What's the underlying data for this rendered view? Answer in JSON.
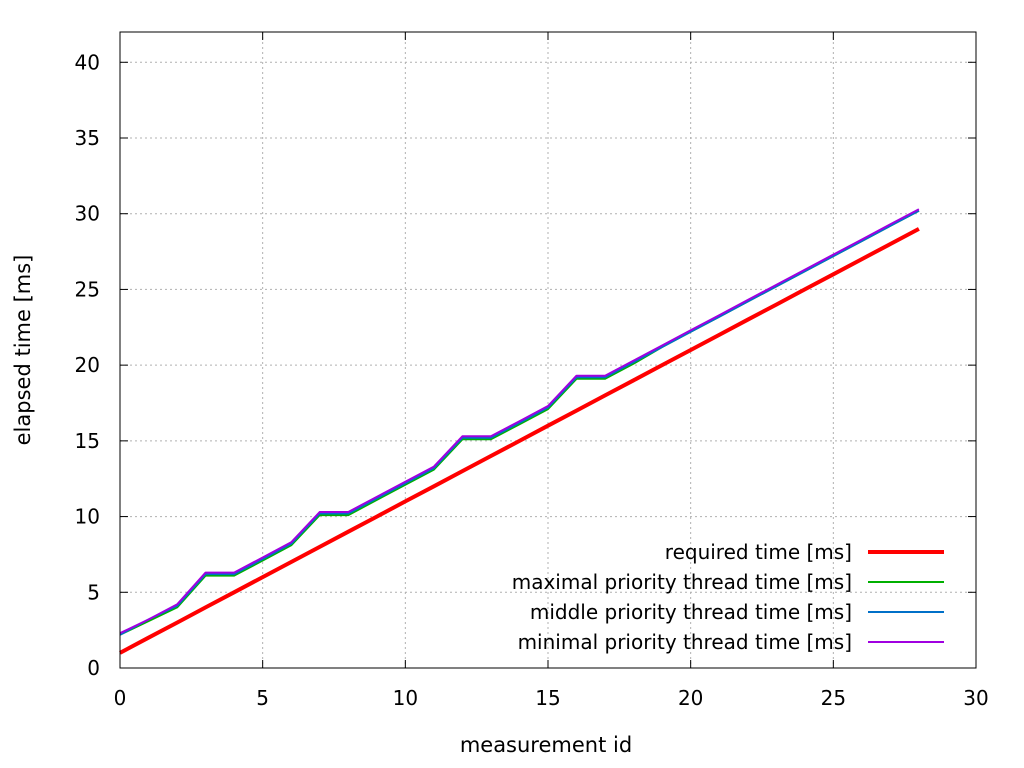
{
  "chart_data": {
    "type": "line",
    "title": "",
    "xlabel": "measurement id",
    "ylabel": "elapsed time [ms]",
    "xlim": [
      0,
      30
    ],
    "ylim": [
      0,
      42
    ],
    "x_ticks": [
      0,
      5,
      10,
      15,
      20,
      25,
      30
    ],
    "y_ticks": [
      0,
      5,
      10,
      15,
      20,
      25,
      30,
      35,
      40
    ],
    "grid": true,
    "legend_position": "bottom-right",
    "x": [
      0,
      1,
      2,
      3,
      4,
      5,
      6,
      7,
      8,
      9,
      10,
      11,
      12,
      13,
      14,
      15,
      16,
      17,
      18,
      19,
      20,
      21,
      22,
      23,
      24,
      25,
      26,
      27,
      28
    ],
    "series": [
      {
        "name": "required time [ms]",
        "color": "#ff0000",
        "values": [
          1,
          2,
          3,
          4,
          5,
          6,
          7,
          8,
          9,
          10,
          11,
          12,
          13,
          14,
          15,
          16,
          17,
          18,
          19,
          20,
          21,
          22,
          23,
          24,
          25,
          26,
          27,
          28,
          29
        ]
      },
      {
        "name": "maximal priority thread time [ms]",
        "color": "#00b000",
        "values": [
          2.2,
          3.1,
          4.0,
          6.1,
          6.1,
          7.1,
          8.1,
          10.1,
          10.1,
          11.1,
          12.1,
          13.1,
          15.1,
          15.1,
          16.1,
          17.1,
          19.1,
          19.1,
          20.1,
          21.2,
          22.2,
          23.2,
          24.2,
          25.2,
          26.2,
          27.2,
          28.2,
          29.2,
          30.2
        ]
      },
      {
        "name": "middle priority thread time [ms]",
        "color": "#0070c8",
        "values": [
          2.2,
          3.2,
          4.1,
          6.2,
          6.2,
          7.2,
          8.2,
          10.2,
          10.2,
          11.2,
          12.2,
          13.2,
          15.2,
          15.2,
          16.2,
          17.2,
          19.2,
          19.2,
          20.2,
          21.2,
          22.2,
          23.2,
          24.2,
          25.2,
          26.2,
          27.2,
          28.2,
          29.2,
          30.2
        ]
      },
      {
        "name": "minimal priority thread time [ms]",
        "color": "#a000e0",
        "values": [
          2.3,
          3.2,
          4.2,
          6.3,
          6.3,
          7.3,
          8.3,
          10.3,
          10.3,
          11.3,
          12.3,
          13.3,
          15.3,
          15.3,
          16.3,
          17.3,
          19.3,
          19.3,
          20.3,
          21.3,
          22.3,
          23.3,
          24.3,
          25.3,
          26.3,
          27.3,
          28.3,
          29.3,
          30.3
        ]
      }
    ]
  }
}
